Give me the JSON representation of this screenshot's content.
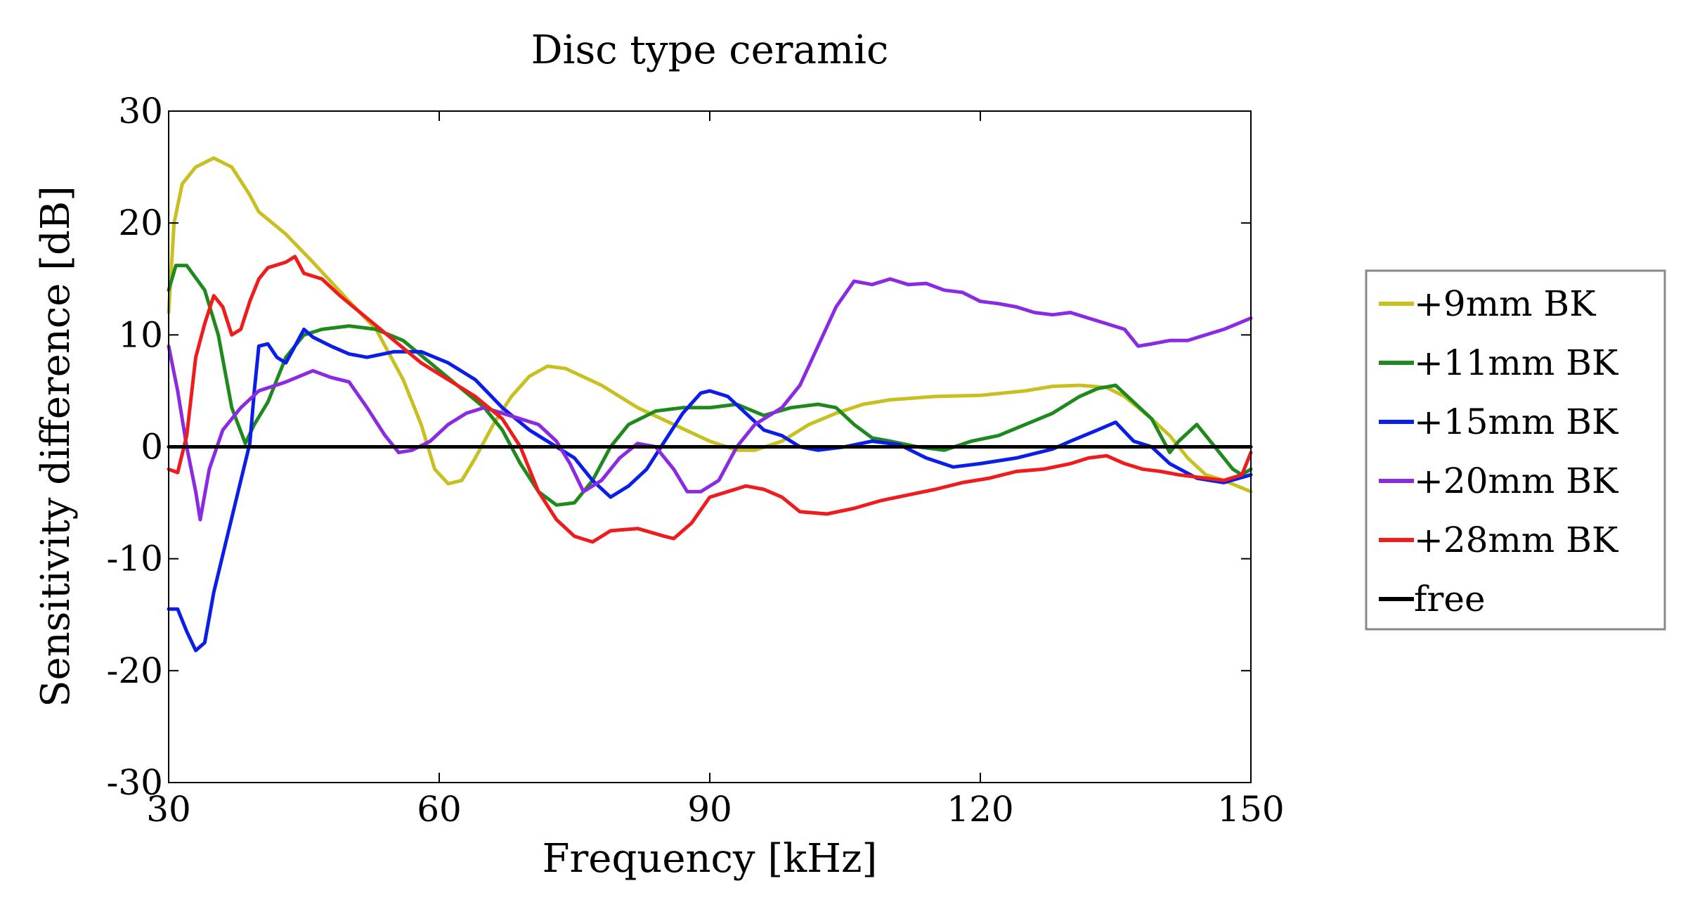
{
  "chart_data": {
    "type": "line",
    "title": "Disc type ceramic",
    "xlabel": "Frequency [kHz]",
    "ylabel": "Sensitivity difference [dB]",
    "xlim": [
      30,
      150
    ],
    "ylim": [
      -30,
      30
    ],
    "xticks": [
      30,
      60,
      90,
      120,
      150
    ],
    "yticks": [
      -30,
      -20,
      -10,
      0,
      10,
      20,
      30
    ],
    "grid": false,
    "legend_position": "right",
    "series": [
      {
        "name": "+9mm BK",
        "color": "#c8c020",
        "points": [
          [
            30,
            12
          ],
          [
            30.6,
            20
          ],
          [
            31.5,
            23.5
          ],
          [
            33,
            25
          ],
          [
            35,
            25.8
          ],
          [
            37,
            25
          ],
          [
            39,
            22.5
          ],
          [
            40,
            21
          ],
          [
            43,
            19
          ],
          [
            46,
            16.5
          ],
          [
            50,
            13
          ],
          [
            53,
            10.5
          ],
          [
            56,
            6
          ],
          [
            58,
            2
          ],
          [
            59.5,
            -2
          ],
          [
            61,
            -3.3
          ],
          [
            62.5,
            -3
          ],
          [
            64,
            -1
          ],
          [
            66,
            2
          ],
          [
            68,
            4.5
          ],
          [
            70,
            6.3
          ],
          [
            72,
            7.2
          ],
          [
            74,
            7
          ],
          [
            78,
            5.5
          ],
          [
            82,
            3.5
          ],
          [
            86,
            2
          ],
          [
            90,
            0.5
          ],
          [
            93,
            -0.3
          ],
          [
            95,
            -0.3
          ],
          [
            98,
            0.5
          ],
          [
            101,
            2
          ],
          [
            104,
            3
          ],
          [
            107,
            3.8
          ],
          [
            110,
            4.2
          ],
          [
            115,
            4.5
          ],
          [
            120,
            4.6
          ],
          [
            125,
            5
          ],
          [
            128,
            5.4
          ],
          [
            131,
            5.5
          ],
          [
            134,
            5.3
          ],
          [
            136,
            4.5
          ],
          [
            139,
            2.5
          ],
          [
            141,
            1
          ],
          [
            143,
            -1
          ],
          [
            145,
            -2.5
          ],
          [
            147,
            -3
          ],
          [
            150,
            -4
          ]
        ]
      },
      {
        "name": "+11mm BK",
        "color": "#1e8a1e",
        "points": [
          [
            30,
            14
          ],
          [
            30.8,
            16.2
          ],
          [
            32,
            16.2
          ],
          [
            34,
            14
          ],
          [
            35.5,
            10
          ],
          [
            37,
            3.5
          ],
          [
            38.5,
            0.3
          ],
          [
            39.5,
            2
          ],
          [
            41,
            4
          ],
          [
            43,
            8
          ],
          [
            45,
            10
          ],
          [
            47,
            10.5
          ],
          [
            50,
            10.8
          ],
          [
            53,
            10.5
          ],
          [
            56,
            9.5
          ],
          [
            59,
            7.5
          ],
          [
            62,
            5.5
          ],
          [
            65,
            3.5
          ],
          [
            67,
            1.5
          ],
          [
            69,
            -1.5
          ],
          [
            71,
            -4
          ],
          [
            73,
            -5.2
          ],
          [
            75,
            -5
          ],
          [
            77,
            -3
          ],
          [
            79,
            0
          ],
          [
            81,
            2
          ],
          [
            84,
            3.2
          ],
          [
            87,
            3.5
          ],
          [
            90,
            3.5
          ],
          [
            93,
            3.8
          ],
          [
            96,
            2.8
          ],
          [
            99,
            3.5
          ],
          [
            102,
            3.8
          ],
          [
            104,
            3.5
          ],
          [
            106,
            2
          ],
          [
            108,
            0.8
          ],
          [
            110,
            0.5
          ],
          [
            113,
            0
          ],
          [
            116,
            -0.3
          ],
          [
            119,
            0.5
          ],
          [
            122,
            1
          ],
          [
            125,
            2
          ],
          [
            128,
            3
          ],
          [
            131,
            4.5
          ],
          [
            133,
            5.2
          ],
          [
            135,
            5.5
          ],
          [
            137,
            4
          ],
          [
            139,
            2.5
          ],
          [
            141,
            -0.5
          ],
          [
            142,
            0.5
          ],
          [
            144,
            2
          ],
          [
            146,
            0
          ],
          [
            148,
            -2
          ],
          [
            149,
            -2.5
          ],
          [
            150,
            -2
          ]
        ]
      },
      {
        "name": "+15mm BK",
        "color": "#0a1ee8",
        "points": [
          [
            30,
            -14.5
          ],
          [
            31,
            -14.5
          ],
          [
            32,
            -16.5
          ],
          [
            33,
            -18.2
          ],
          [
            34,
            -17.5
          ],
          [
            35,
            -13
          ],
          [
            36.5,
            -8
          ],
          [
            38,
            -3
          ],
          [
            39,
            0.3
          ],
          [
            39.5,
            5
          ],
          [
            40,
            9
          ],
          [
            41,
            9.2
          ],
          [
            42,
            8
          ],
          [
            43,
            7.5
          ],
          [
            44,
            9
          ],
          [
            45,
            10.5
          ],
          [
            46,
            9.8
          ],
          [
            48,
            9
          ],
          [
            50,
            8.3
          ],
          [
            52,
            8
          ],
          [
            55,
            8.5
          ],
          [
            58,
            8.5
          ],
          [
            61,
            7.5
          ],
          [
            64,
            6
          ],
          [
            67,
            3.5
          ],
          [
            70,
            1.5
          ],
          [
            73,
            0
          ],
          [
            75,
            -1
          ],
          [
            77,
            -3
          ],
          [
            79,
            -4.5
          ],
          [
            81,
            -3.5
          ],
          [
            83,
            -2
          ],
          [
            85,
            0.5
          ],
          [
            87,
            3
          ],
          [
            89,
            4.8
          ],
          [
            90,
            5
          ],
          [
            92,
            4.5
          ],
          [
            94,
            3
          ],
          [
            96,
            1.5
          ],
          [
            98,
            1
          ],
          [
            100,
            0
          ],
          [
            102,
            -0.3
          ],
          [
            105,
            0
          ],
          [
            108,
            0.5
          ],
          [
            111,
            0.2
          ],
          [
            114,
            -1
          ],
          [
            117,
            -1.8
          ],
          [
            120,
            -1.5
          ],
          [
            124,
            -1
          ],
          [
            128,
            -0.2
          ],
          [
            130,
            0.5
          ],
          [
            133,
            1.5
          ],
          [
            135,
            2.2
          ],
          [
            137,
            0.5
          ],
          [
            139,
            0
          ],
          [
            141,
            -1.5
          ],
          [
            144,
            -2.8
          ],
          [
            147,
            -3.2
          ],
          [
            150,
            -2.5
          ]
        ]
      },
      {
        "name": "+20mm BK",
        "color": "#8a2be2",
        "points": [
          [
            30,
            9
          ],
          [
            31,
            5
          ],
          [
            32,
            0
          ],
          [
            33,
            -4
          ],
          [
            33.5,
            -6.5
          ],
          [
            34.5,
            -2
          ],
          [
            36,
            1.5
          ],
          [
            38,
            3.5
          ],
          [
            40,
            5
          ],
          [
            43,
            5.8
          ],
          [
            46,
            6.8
          ],
          [
            48,
            6.2
          ],
          [
            50,
            5.8
          ],
          [
            52,
            3.5
          ],
          [
            54,
            1
          ],
          [
            55.5,
            -0.5
          ],
          [
            57,
            -0.3
          ],
          [
            59,
            0.5
          ],
          [
            61,
            2
          ],
          [
            63,
            3
          ],
          [
            65,
            3.5
          ],
          [
            67,
            3
          ],
          [
            69,
            2.5
          ],
          [
            71,
            2
          ],
          [
            73,
            0.5
          ],
          [
            74.5,
            -1.5
          ],
          [
            76,
            -4
          ],
          [
            78,
            -3
          ],
          [
            80,
            -1
          ],
          [
            82,
            0.3
          ],
          [
            84,
            0
          ],
          [
            86,
            -2
          ],
          [
            87.5,
            -4
          ],
          [
            89,
            -4
          ],
          [
            91,
            -3
          ],
          [
            93,
            0
          ],
          [
            95,
            2
          ],
          [
            98,
            3.5
          ],
          [
            100,
            5.5
          ],
          [
            102,
            9
          ],
          [
            104,
            12.5
          ],
          [
            106,
            14.8
          ],
          [
            108,
            14.5
          ],
          [
            110,
            15
          ],
          [
            112,
            14.5
          ],
          [
            114,
            14.6
          ],
          [
            116,
            14
          ],
          [
            118,
            13.8
          ],
          [
            120,
            13
          ],
          [
            122,
            12.8
          ],
          [
            124,
            12.5
          ],
          [
            126,
            12
          ],
          [
            128,
            11.8
          ],
          [
            130,
            12
          ],
          [
            132,
            11.5
          ],
          [
            134,
            11
          ],
          [
            136,
            10.5
          ],
          [
            137.5,
            9
          ],
          [
            139,
            9.2
          ],
          [
            141,
            9.5
          ],
          [
            143,
            9.5
          ],
          [
            145,
            10
          ],
          [
            147,
            10.5
          ],
          [
            150,
            11.5
          ]
        ]
      },
      {
        "name": "+28mm BK",
        "color": "#ee1c1c",
        "points": [
          [
            30,
            -2
          ],
          [
            31,
            -2.3
          ],
          [
            32,
            1
          ],
          [
            33,
            8
          ],
          [
            34,
            11
          ],
          [
            35,
            13.5
          ],
          [
            36,
            12.5
          ],
          [
            37,
            10
          ],
          [
            38,
            10.5
          ],
          [
            39,
            13
          ],
          [
            40,
            15
          ],
          [
            41,
            16
          ],
          [
            43,
            16.5
          ],
          [
            44,
            17
          ],
          [
            45,
            15.5
          ],
          [
            47,
            15
          ],
          [
            49,
            13.5
          ],
          [
            52,
            11.5
          ],
          [
            55,
            9.5
          ],
          [
            58,
            7.5
          ],
          [
            61,
            6
          ],
          [
            64,
            4.5
          ],
          [
            67,
            2.5
          ],
          [
            69,
            0
          ],
          [
            71,
            -4
          ],
          [
            73,
            -6.5
          ],
          [
            75,
            -8
          ],
          [
            77,
            -8.5
          ],
          [
            79,
            -7.5
          ],
          [
            82,
            -7.3
          ],
          [
            85,
            -8
          ],
          [
            86,
            -8.2
          ],
          [
            88,
            -6.8
          ],
          [
            90,
            -4.5
          ],
          [
            92,
            -4
          ],
          [
            94,
            -3.5
          ],
          [
            96,
            -3.8
          ],
          [
            98,
            -4.5
          ],
          [
            100,
            -5.8
          ],
          [
            103,
            -6
          ],
          [
            106,
            -5.5
          ],
          [
            109,
            -4.8
          ],
          [
            112,
            -4.3
          ],
          [
            115,
            -3.8
          ],
          [
            118,
            -3.2
          ],
          [
            121,
            -2.8
          ],
          [
            124,
            -2.2
          ],
          [
            127,
            -2
          ],
          [
            130,
            -1.5
          ],
          [
            132,
            -1
          ],
          [
            134,
            -0.8
          ],
          [
            136,
            -1.5
          ],
          [
            138,
            -2
          ],
          [
            140,
            -2.2
          ],
          [
            142,
            -2.5
          ],
          [
            145,
            -2.8
          ],
          [
            147,
            -3
          ],
          [
            149,
            -2.5
          ],
          [
            150,
            -0.5
          ]
        ]
      },
      {
        "name": "free",
        "color": "#000000",
        "points": [
          [
            30,
            0
          ],
          [
            150,
            0
          ]
        ]
      }
    ]
  }
}
